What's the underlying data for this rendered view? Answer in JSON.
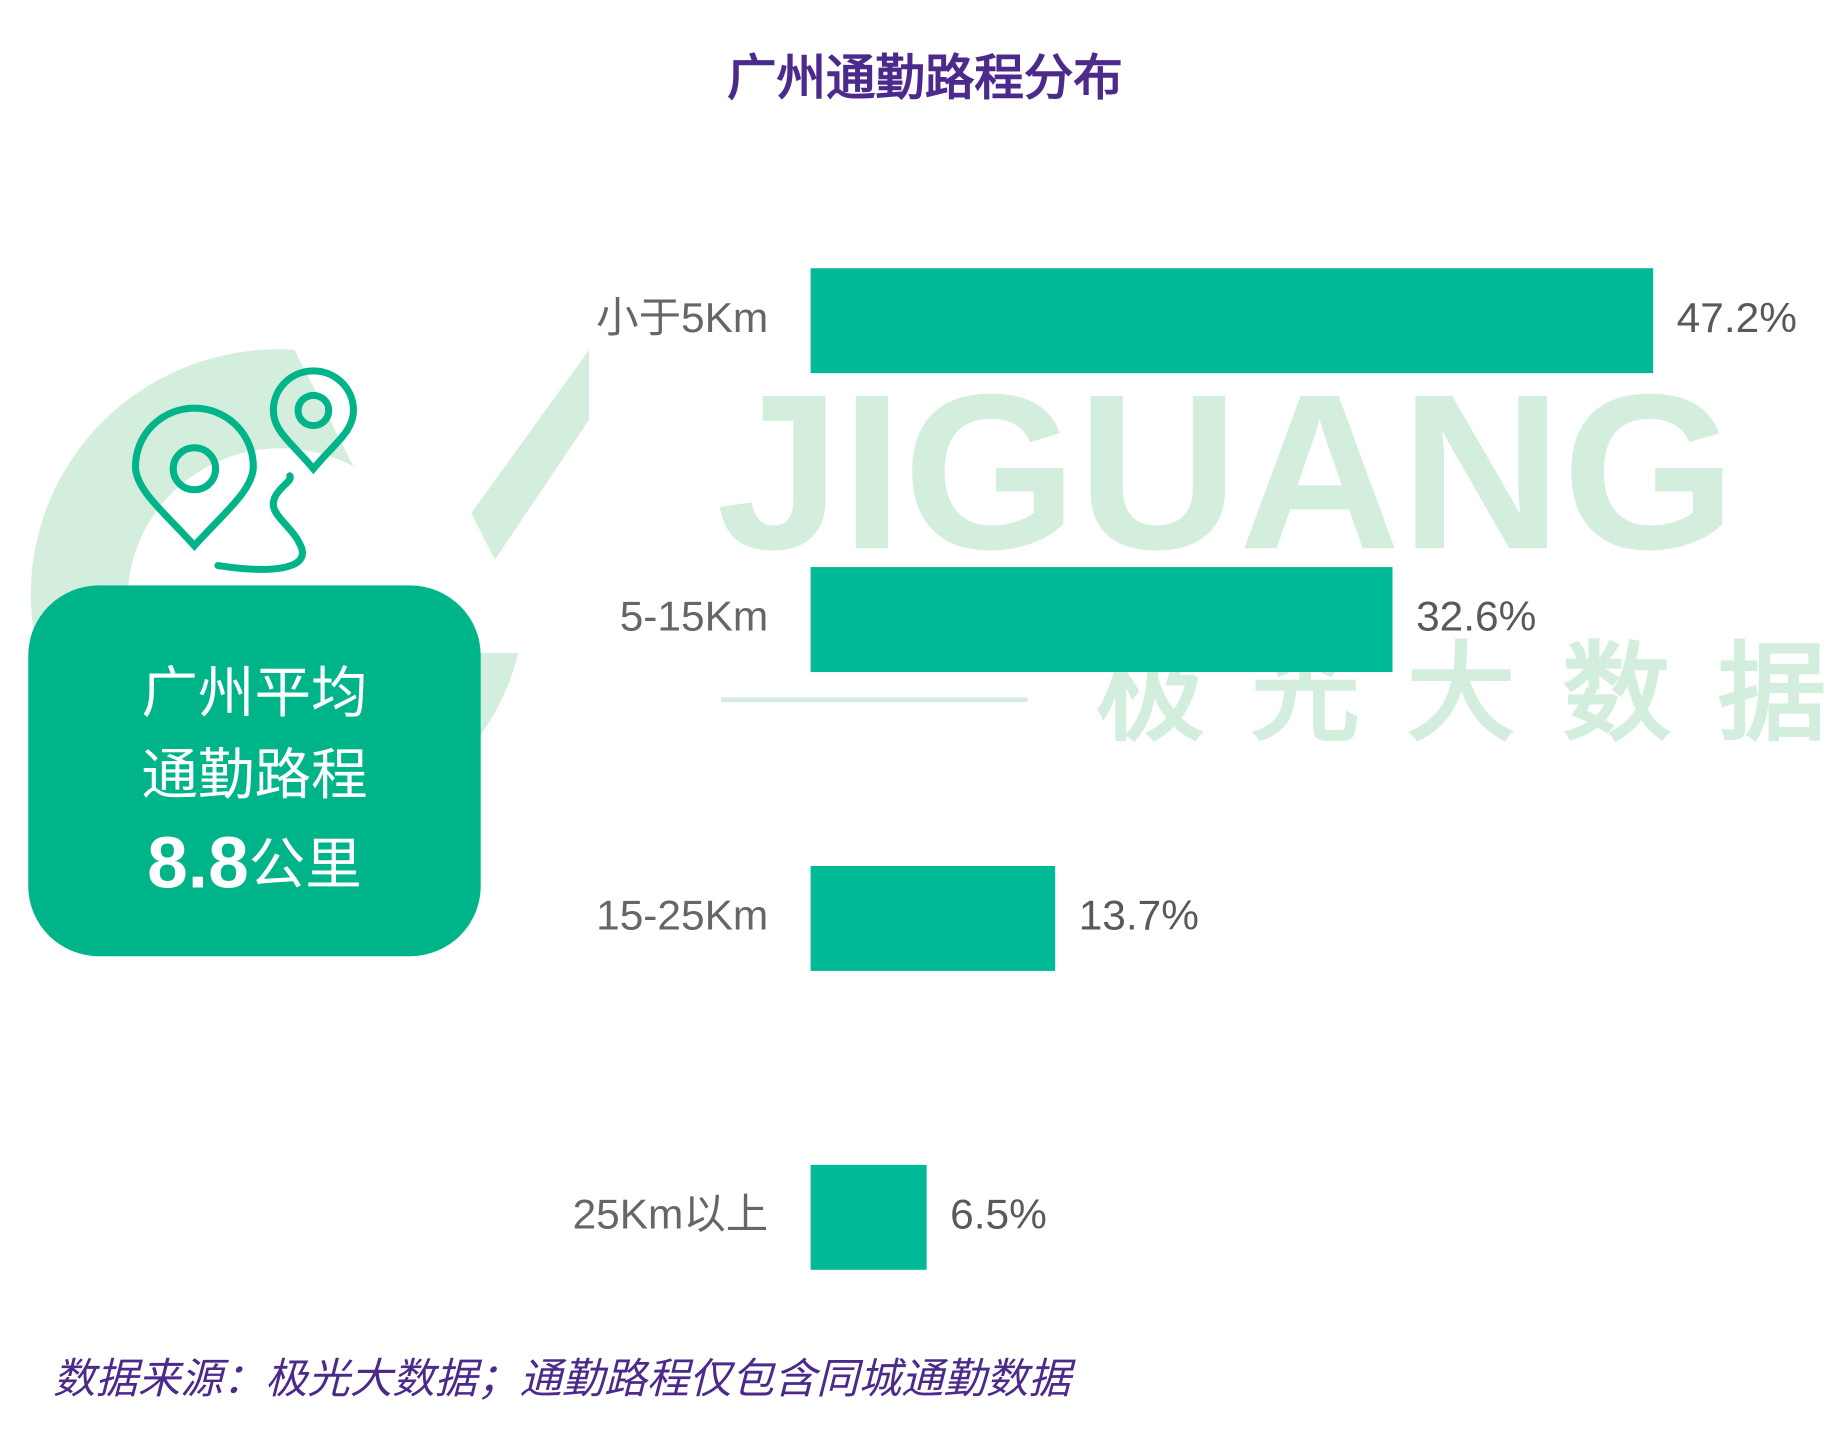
{
  "chart_data": {
    "type": "bar",
    "orientation": "horizontal",
    "title": "广州通勤路程分布",
    "categories": [
      "小于5Km",
      "5-15Km",
      "15-25Km",
      "25Km以上"
    ],
    "values": [
      47.2,
      32.6,
      13.7,
      6.5
    ],
    "value_labels": [
      "47.2%",
      "32.6%",
      "13.7%",
      "6.5%"
    ],
    "color": "#00b996"
  },
  "callout": {
    "lines": [
      "广州平均",
      "通勤路程"
    ],
    "value": "8.8",
    "unit": "公里"
  },
  "watermark": {
    "logo": "JIGUANG",
    "name": "极光大数据"
  },
  "source": "数据来源：极光大数据；通勤路程仅包含同城通勤数据"
}
